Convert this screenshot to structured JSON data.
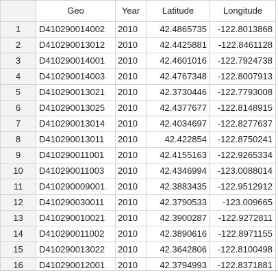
{
  "table": {
    "headers": {
      "index": "",
      "geo": "Geo",
      "year": "Year",
      "latitude": "Latitude",
      "longitude": "Longitude"
    },
    "rows": [
      {
        "index": "1",
        "geo": "D410290014002",
        "year": "2010",
        "latitude": "42.4865735",
        "longitude": "-122.8013868"
      },
      {
        "index": "2",
        "geo": "D410290013012",
        "year": "2010",
        "latitude": "42.4425881",
        "longitude": "-122.8461128"
      },
      {
        "index": "3",
        "geo": "D410290014001",
        "year": "2010",
        "latitude": "42.4601016",
        "longitude": "-122.7924738"
      },
      {
        "index": "4",
        "geo": "D410290014003",
        "year": "2010",
        "latitude": "42.4767348",
        "longitude": "-122.8007913"
      },
      {
        "index": "5",
        "geo": "D410290013021",
        "year": "2010",
        "latitude": "42.3730446",
        "longitude": "-122.7793008"
      },
      {
        "index": "6",
        "geo": "D410290013025",
        "year": "2010",
        "latitude": "42.4377677",
        "longitude": "-122.8148915"
      },
      {
        "index": "7",
        "geo": "D410290013014",
        "year": "2010",
        "latitude": "42.4034697",
        "longitude": "-122.8277637"
      },
      {
        "index": "8",
        "geo": "D410290013011",
        "year": "2010",
        "latitude": "42.422854",
        "longitude": "-122.8750241"
      },
      {
        "index": "9",
        "geo": "D410290011001",
        "year": "2010",
        "latitude": "42.4155163",
        "longitude": "-122.9265334"
      },
      {
        "index": "10",
        "geo": "D410290011003",
        "year": "2010",
        "latitude": "42.4346994",
        "longitude": "-123.0088014"
      },
      {
        "index": "11",
        "geo": "D410290009001",
        "year": "2010",
        "latitude": "42.3883435",
        "longitude": "-122.9512912"
      },
      {
        "index": "12",
        "geo": "D410290030011",
        "year": "2010",
        "latitude": "42.3790533",
        "longitude": "-123.009665"
      },
      {
        "index": "13",
        "geo": "D410290010021",
        "year": "2010",
        "latitude": "42.3900287",
        "longitude": "-122.9272811"
      },
      {
        "index": "14",
        "geo": "D410290011002",
        "year": "2010",
        "latitude": "42.3890616",
        "longitude": "-122.8971155"
      },
      {
        "index": "15",
        "geo": "D410290013022",
        "year": "2010",
        "latitude": "42.3642806",
        "longitude": "-122.8100498"
      },
      {
        "index": "16",
        "geo": "D410290012001",
        "year": "2010",
        "latitude": "42.3794993",
        "longitude": "-122.8371881"
      }
    ]
  },
  "colors": {
    "border": "#d4d4d4",
    "index_background": "#f3f3f3",
    "text": "#222222"
  }
}
